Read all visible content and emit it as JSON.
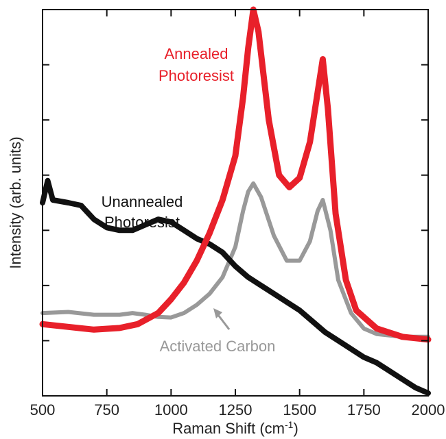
{
  "chart_data": {
    "type": "line",
    "title": "",
    "xlabel": "Raman Shift (cm",
    "xlabel_sup": "-1",
    "xlabel_close": ")",
    "ylabel": "Intensity (arb. units)",
    "xlim": [
      500,
      2000
    ],
    "ylim": [
      0,
      7
    ],
    "x_ticks": [
      500,
      750,
      1000,
      1250,
      1500,
      1750,
      2000
    ],
    "x_tick_labels": [
      "500",
      "750",
      "1000",
      "1250",
      "1500",
      "1750",
      "2000"
    ],
    "y_ticks": [
      1,
      2,
      3,
      4,
      5,
      6,
      7
    ],
    "y_tick_labels_shown": false,
    "grid": false,
    "series": [
      {
        "name": "Annealed Photoresist",
        "color": "#e8202a",
        "points": [
          [
            500,
            1.3
          ],
          [
            600,
            1.25
          ],
          [
            700,
            1.2
          ],
          [
            800,
            1.23
          ],
          [
            870,
            1.3
          ],
          [
            950,
            1.5
          ],
          [
            1000,
            1.75
          ],
          [
            1050,
            2.05
          ],
          [
            1100,
            2.45
          ],
          [
            1150,
            2.95
          ],
          [
            1200,
            3.55
          ],
          [
            1250,
            4.35
          ],
          [
            1280,
            5.4
          ],
          [
            1300,
            6.3
          ],
          [
            1320,
            7.0
          ],
          [
            1340,
            6.6
          ],
          [
            1380,
            5.0
          ],
          [
            1420,
            4.0
          ],
          [
            1460,
            3.78
          ],
          [
            1500,
            3.95
          ],
          [
            1540,
            4.6
          ],
          [
            1570,
            5.5
          ],
          [
            1590,
            6.1
          ],
          [
            1610,
            5.2
          ],
          [
            1640,
            3.3
          ],
          [
            1680,
            2.1
          ],
          [
            1720,
            1.55
          ],
          [
            1800,
            1.22
          ],
          [
            1900,
            1.07
          ],
          [
            2000,
            1.02
          ]
        ]
      },
      {
        "name": "Unannealed Photoresist",
        "color": "#111111",
        "points": [
          [
            500,
            3.5
          ],
          [
            520,
            3.9
          ],
          [
            540,
            3.55
          ],
          [
            600,
            3.5
          ],
          [
            650,
            3.45
          ],
          [
            700,
            3.2
          ],
          [
            750,
            3.05
          ],
          [
            800,
            3.0
          ],
          [
            850,
            3.0
          ],
          [
            900,
            3.1
          ],
          [
            950,
            3.2
          ],
          [
            1000,
            3.15
          ],
          [
            1050,
            3.0
          ],
          [
            1100,
            2.85
          ],
          [
            1150,
            2.75
          ],
          [
            1200,
            2.6
          ],
          [
            1250,
            2.35
          ],
          [
            1300,
            2.15
          ],
          [
            1350,
            2.0
          ],
          [
            1400,
            1.85
          ],
          [
            1450,
            1.7
          ],
          [
            1500,
            1.55
          ],
          [
            1550,
            1.35
          ],
          [
            1600,
            1.15
          ],
          [
            1650,
            1.0
          ],
          [
            1700,
            0.85
          ],
          [
            1750,
            0.7
          ],
          [
            1800,
            0.6
          ],
          [
            1850,
            0.45
          ],
          [
            1900,
            0.3
          ],
          [
            1950,
            0.15
          ],
          [
            2000,
            0.05
          ]
        ]
      },
      {
        "name": "Activated Carbon",
        "color": "#999999",
        "points": [
          [
            500,
            1.5
          ],
          [
            600,
            1.52
          ],
          [
            700,
            1.47
          ],
          [
            800,
            1.47
          ],
          [
            850,
            1.5
          ],
          [
            900,
            1.47
          ],
          [
            950,
            1.43
          ],
          [
            1000,
            1.42
          ],
          [
            1050,
            1.5
          ],
          [
            1100,
            1.65
          ],
          [
            1150,
            1.85
          ],
          [
            1200,
            2.15
          ],
          [
            1250,
            2.7
          ],
          [
            1280,
            3.35
          ],
          [
            1300,
            3.7
          ],
          [
            1320,
            3.85
          ],
          [
            1350,
            3.6
          ],
          [
            1400,
            2.9
          ],
          [
            1450,
            2.45
          ],
          [
            1500,
            2.45
          ],
          [
            1540,
            2.8
          ],
          [
            1570,
            3.35
          ],
          [
            1590,
            3.55
          ],
          [
            1620,
            3.0
          ],
          [
            1650,
            2.1
          ],
          [
            1700,
            1.5
          ],
          [
            1750,
            1.22
          ],
          [
            1800,
            1.12
          ],
          [
            1900,
            1.07
          ],
          [
            2000,
            1.07
          ]
        ]
      }
    ],
    "annotations": [
      {
        "text": "Annealed",
        "color": "#e8202a"
      },
      {
        "text": "Photoresist",
        "color": "#e8202a"
      },
      {
        "text": "Unannealed",
        "color": "#111111"
      },
      {
        "text": "Photoresist",
        "color": "#111111"
      },
      {
        "text": "Activated Carbon",
        "color": "#999999"
      }
    ]
  }
}
